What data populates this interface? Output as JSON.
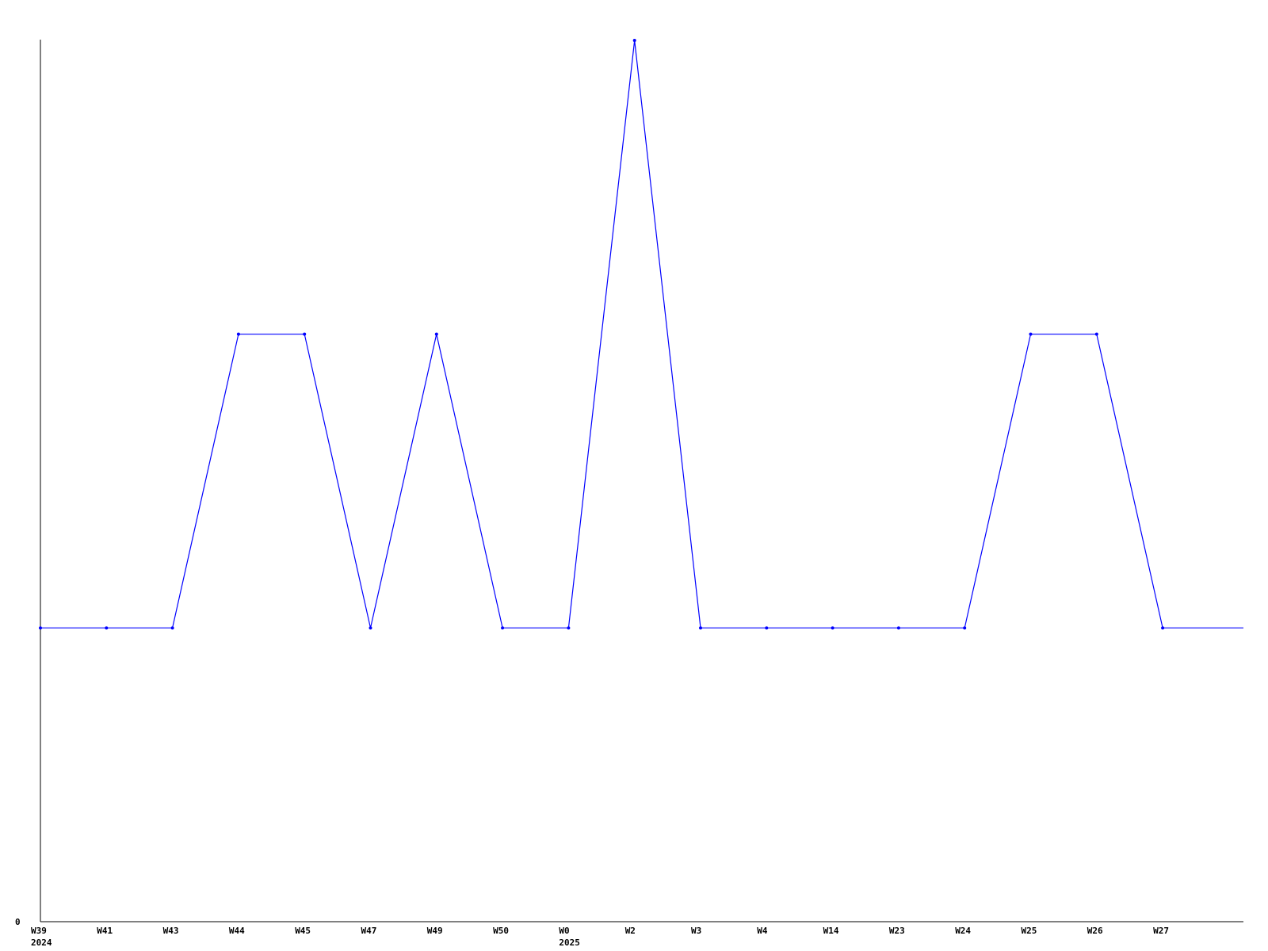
{
  "chart_data": {
    "type": "line",
    "title": "",
    "xlabel": "",
    "ylabel": "",
    "categories": [
      "W39",
      "W41",
      "W43",
      "W44",
      "W45",
      "W47",
      "W49",
      "W50",
      "W0",
      "W2",
      "W3",
      "W4",
      "W14",
      "W23",
      "W24",
      "W25",
      "W26",
      "W27"
    ],
    "year_labels": [
      {
        "index": 0,
        "label": "2024"
      },
      {
        "index": 8,
        "label": "2025"
      }
    ],
    "y_tick_labels": [
      "0"
    ],
    "ylim": [
      0,
      3
    ],
    "grid": false,
    "series": [
      {
        "values": [
          1,
          1,
          1,
          2,
          2,
          1,
          2,
          1,
          1,
          3,
          1,
          1,
          1,
          1,
          1,
          2,
          2,
          1
        ],
        "color": "#0000ff"
      }
    ]
  }
}
